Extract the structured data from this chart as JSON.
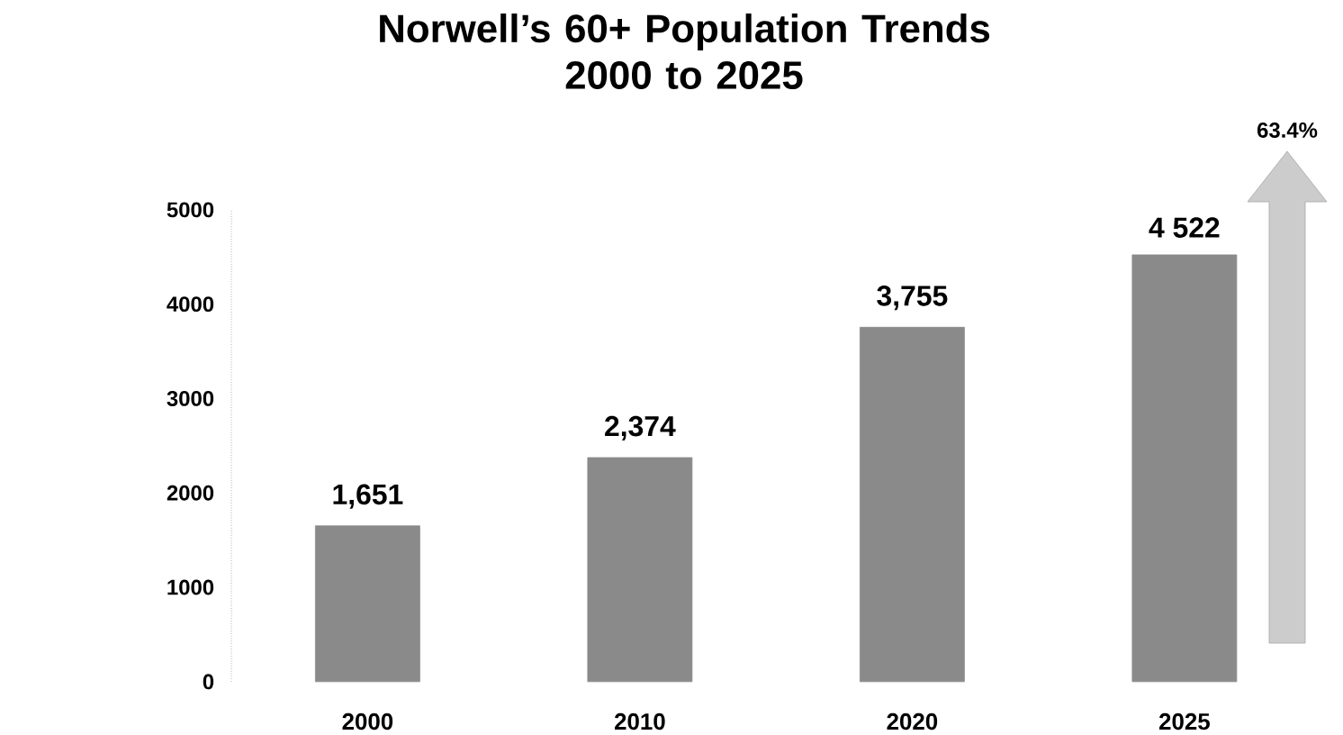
{
  "chart_data": {
    "type": "bar",
    "title": "Norwell’s 60+ Population Trends\n2000 to 2025",
    "categories": [
      "2000",
      "2010",
      "2020",
      "2025"
    ],
    "values": [
      1651,
      2374,
      3755,
      4522
    ],
    "value_labels": [
      "1,651",
      "2,374",
      "3,755",
      "4 522"
    ],
    "color": "#8a8a8a",
    "ylim": [
      0,
      5000
    ],
    "yticks": [
      0,
      1000,
      2000,
      3000,
      4000,
      5000
    ],
    "annotations": [
      "63.4%"
    ]
  }
}
